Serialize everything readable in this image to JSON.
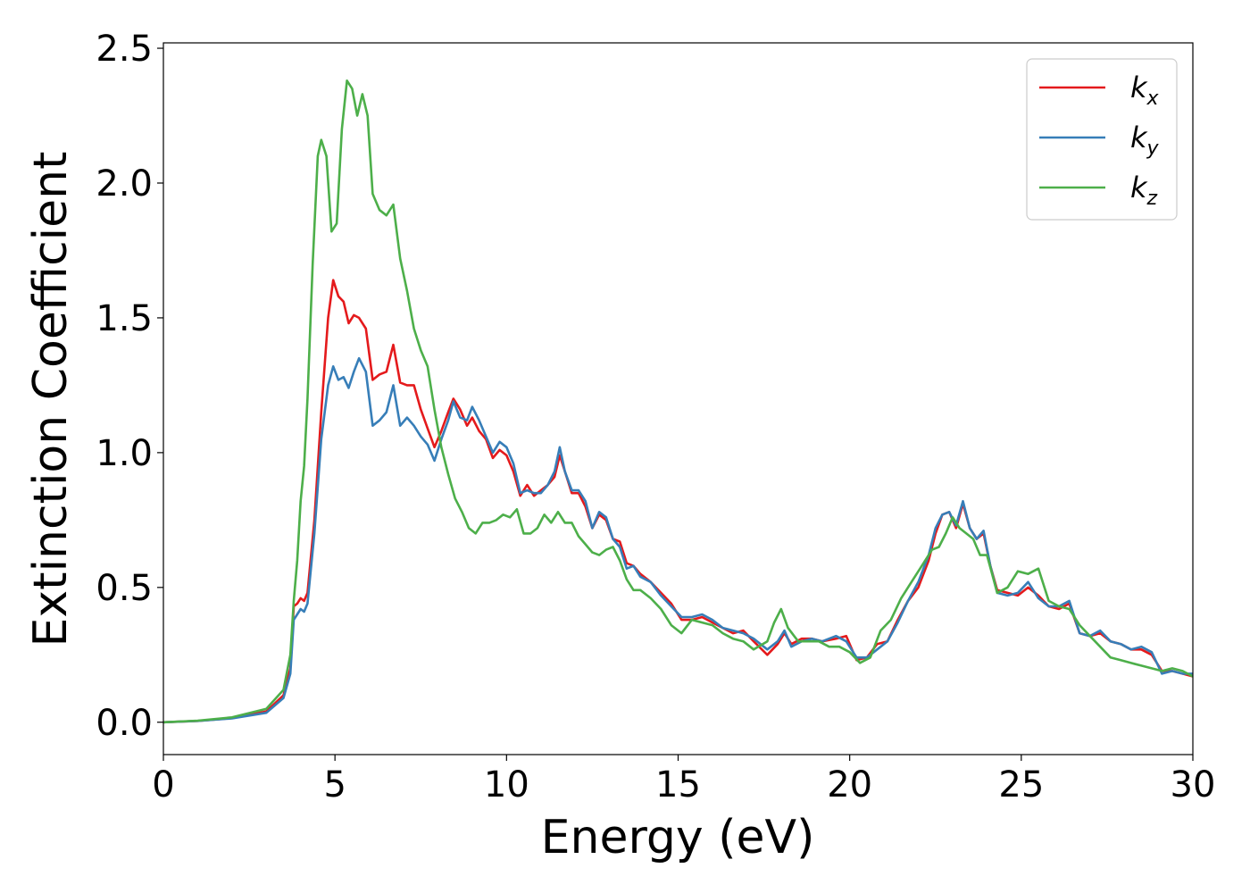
{
  "chart_data": {
    "type": "line",
    "xlabel": "Energy (eV)",
    "ylabel": "Extinction Coefficient",
    "xlim": [
      0,
      30
    ],
    "ylim": [
      -0.12,
      2.52
    ],
    "x_ticks": [
      "0",
      "5",
      "10",
      "15",
      "20",
      "25",
      "30"
    ],
    "y_ticks": [
      "0.0",
      "0.5",
      "1.0",
      "1.5",
      "2.0",
      "2.5"
    ],
    "legend_position": "top-right",
    "grid": false,
    "series": [
      {
        "name": "k_x",
        "label_base": "k",
        "label_sub": "x",
        "color": "#e41a1c",
        "x": [
          0,
          1,
          2,
          3,
          3.5,
          3.7,
          3.8,
          3.9,
          4.0,
          4.1,
          4.2,
          4.4,
          4.6,
          4.8,
          4.95,
          5.1,
          5.25,
          5.4,
          5.55,
          5.7,
          5.9,
          6.1,
          6.3,
          6.5,
          6.7,
          6.9,
          7.1,
          7.3,
          7.5,
          7.7,
          7.9,
          8.1,
          8.3,
          8.45,
          8.65,
          8.85,
          9.0,
          9.2,
          9.4,
          9.6,
          9.8,
          10.0,
          10.2,
          10.4,
          10.6,
          10.8,
          11.0,
          11.2,
          11.4,
          11.55,
          11.7,
          11.9,
          12.1,
          12.3,
          12.5,
          12.7,
          12.9,
          13.1,
          13.3,
          13.5,
          13.7,
          13.9,
          14.2,
          14.5,
          14.8,
          15.1,
          15.4,
          15.7,
          16.0,
          16.3,
          16.6,
          16.9,
          17.2,
          17.6,
          17.9,
          18.1,
          18.3,
          18.6,
          18.9,
          19.2,
          19.6,
          19.9,
          20.2,
          20.5,
          20.8,
          21.1,
          21.4,
          21.7,
          22.0,
          22.3,
          22.5,
          22.7,
          22.9,
          23.1,
          23.3,
          23.5,
          23.7,
          23.9,
          24.1,
          24.3,
          24.6,
          24.9,
          25.2,
          25.5,
          25.8,
          26.1,
          26.4,
          26.7,
          27.0,
          27.3,
          27.6,
          27.9,
          28.2,
          28.5,
          28.8,
          29.1,
          29.4,
          29.7,
          30.0
        ],
        "y": [
          0,
          0.005,
          0.015,
          0.04,
          0.1,
          0.2,
          0.43,
          0.44,
          0.46,
          0.45,
          0.48,
          0.75,
          1.15,
          1.5,
          1.64,
          1.58,
          1.56,
          1.48,
          1.51,
          1.5,
          1.46,
          1.27,
          1.29,
          1.3,
          1.4,
          1.26,
          1.25,
          1.25,
          1.16,
          1.09,
          1.02,
          1.08,
          1.15,
          1.2,
          1.16,
          1.1,
          1.13,
          1.08,
          1.05,
          0.98,
          1.01,
          0.99,
          0.93,
          0.84,
          0.88,
          0.84,
          0.86,
          0.88,
          0.91,
          0.99,
          0.93,
          0.85,
          0.85,
          0.8,
          0.72,
          0.77,
          0.75,
          0.68,
          0.67,
          0.59,
          0.58,
          0.55,
          0.52,
          0.48,
          0.44,
          0.38,
          0.38,
          0.39,
          0.37,
          0.35,
          0.33,
          0.34,
          0.3,
          0.25,
          0.29,
          0.33,
          0.29,
          0.31,
          0.31,
          0.3,
          0.31,
          0.32,
          0.23,
          0.24,
          0.29,
          0.3,
          0.38,
          0.45,
          0.5,
          0.6,
          0.7,
          0.77,
          0.78,
          0.72,
          0.81,
          0.72,
          0.68,
          0.7,
          0.58,
          0.49,
          0.48,
          0.47,
          0.5,
          0.47,
          0.43,
          0.42,
          0.44,
          0.33,
          0.32,
          0.33,
          0.3,
          0.29,
          0.27,
          0.27,
          0.25,
          0.19,
          0.19,
          0.18,
          0.17
        ]
      },
      {
        "name": "k_y",
        "label_base": "k",
        "label_sub": "y",
        "color": "#377eb8",
        "x": [
          0,
          1,
          2,
          3,
          3.5,
          3.7,
          3.8,
          3.9,
          4.0,
          4.1,
          4.2,
          4.4,
          4.6,
          4.8,
          4.95,
          5.1,
          5.25,
          5.4,
          5.55,
          5.7,
          5.9,
          6.1,
          6.3,
          6.5,
          6.7,
          6.9,
          7.1,
          7.3,
          7.5,
          7.7,
          7.9,
          8.1,
          8.3,
          8.45,
          8.65,
          8.85,
          9.0,
          9.2,
          9.4,
          9.6,
          9.8,
          10.0,
          10.2,
          10.4,
          10.6,
          10.8,
          11.0,
          11.2,
          11.4,
          11.55,
          11.7,
          11.9,
          12.1,
          12.3,
          12.5,
          12.7,
          12.9,
          13.1,
          13.3,
          13.5,
          13.7,
          13.9,
          14.2,
          14.5,
          14.8,
          15.1,
          15.4,
          15.7,
          16.0,
          16.3,
          16.6,
          16.9,
          17.2,
          17.6,
          17.9,
          18.1,
          18.3,
          18.6,
          18.9,
          19.2,
          19.6,
          19.9,
          20.2,
          20.5,
          20.8,
          21.1,
          21.4,
          21.7,
          22.0,
          22.3,
          22.5,
          22.7,
          22.9,
          23.1,
          23.3,
          23.5,
          23.7,
          23.9,
          24.1,
          24.3,
          24.6,
          24.9,
          25.2,
          25.5,
          25.8,
          26.1,
          26.4,
          26.7,
          27.0,
          27.3,
          27.6,
          27.9,
          28.2,
          28.5,
          28.8,
          29.1,
          29.4,
          29.7,
          30.0
        ],
        "y": [
          0,
          0.005,
          0.014,
          0.035,
          0.09,
          0.18,
          0.38,
          0.4,
          0.42,
          0.41,
          0.44,
          0.7,
          1.05,
          1.25,
          1.32,
          1.27,
          1.28,
          1.24,
          1.3,
          1.35,
          1.3,
          1.1,
          1.12,
          1.15,
          1.25,
          1.1,
          1.13,
          1.1,
          1.06,
          1.03,
          0.97,
          1.05,
          1.12,
          1.19,
          1.13,
          1.12,
          1.17,
          1.12,
          1.06,
          1.0,
          1.04,
          1.02,
          0.96,
          0.85,
          0.86,
          0.85,
          0.85,
          0.88,
          0.93,
          1.02,
          0.93,
          0.86,
          0.86,
          0.82,
          0.72,
          0.78,
          0.76,
          0.68,
          0.65,
          0.57,
          0.58,
          0.54,
          0.52,
          0.47,
          0.43,
          0.39,
          0.39,
          0.4,
          0.38,
          0.35,
          0.34,
          0.33,
          0.31,
          0.27,
          0.3,
          0.34,
          0.28,
          0.3,
          0.31,
          0.3,
          0.32,
          0.3,
          0.24,
          0.24,
          0.27,
          0.3,
          0.37,
          0.45,
          0.52,
          0.62,
          0.72,
          0.77,
          0.78,
          0.73,
          0.82,
          0.72,
          0.68,
          0.71,
          0.58,
          0.48,
          0.47,
          0.48,
          0.52,
          0.46,
          0.43,
          0.43,
          0.45,
          0.33,
          0.32,
          0.34,
          0.3,
          0.29,
          0.27,
          0.28,
          0.26,
          0.18,
          0.19,
          0.18,
          0.18
        ]
      },
      {
        "name": "k_z",
        "label_base": "k",
        "label_sub": "z",
        "color": "#4daf4a",
        "x": [
          0,
          1,
          2,
          3,
          3.5,
          3.7,
          3.8,
          3.9,
          4.0,
          4.1,
          4.2,
          4.35,
          4.5,
          4.6,
          4.75,
          4.9,
          5.05,
          5.2,
          5.35,
          5.5,
          5.65,
          5.8,
          5.95,
          6.1,
          6.3,
          6.5,
          6.7,
          6.9,
          7.1,
          7.3,
          7.5,
          7.7,
          7.9,
          8.1,
          8.3,
          8.5,
          8.7,
          8.9,
          9.1,
          9.3,
          9.5,
          9.7,
          9.9,
          10.1,
          10.3,
          10.5,
          10.7,
          10.9,
          11.1,
          11.3,
          11.5,
          11.7,
          11.9,
          12.1,
          12.3,
          12.5,
          12.7,
          12.9,
          13.1,
          13.3,
          13.5,
          13.7,
          13.9,
          14.2,
          14.5,
          14.8,
          15.1,
          15.4,
          15.7,
          16.0,
          16.3,
          16.6,
          16.9,
          17.2,
          17.6,
          17.8,
          18.0,
          18.2,
          18.5,
          18.8,
          19.1,
          19.4,
          19.7,
          20.0,
          20.3,
          20.6,
          20.9,
          21.2,
          21.5,
          21.8,
          22.1,
          22.4,
          22.6,
          22.8,
          23.0,
          23.2,
          23.4,
          23.6,
          23.8,
          24.0,
          24.3,
          24.6,
          24.9,
          25.2,
          25.5,
          25.8,
          26.1,
          26.4,
          26.7,
          27.0,
          27.3,
          27.6,
          27.9,
          28.2,
          28.5,
          28.8,
          29.1,
          29.4,
          29.7,
          30.0
        ],
        "y": [
          0,
          0.006,
          0.018,
          0.05,
          0.12,
          0.25,
          0.45,
          0.6,
          0.82,
          0.95,
          1.2,
          1.7,
          2.1,
          2.16,
          2.1,
          1.82,
          1.85,
          2.2,
          2.38,
          2.35,
          2.25,
          2.33,
          2.25,
          1.96,
          1.9,
          1.88,
          1.92,
          1.72,
          1.6,
          1.46,
          1.38,
          1.32,
          1.16,
          1.02,
          0.92,
          0.83,
          0.78,
          0.72,
          0.7,
          0.74,
          0.74,
          0.75,
          0.77,
          0.76,
          0.79,
          0.7,
          0.7,
          0.72,
          0.77,
          0.74,
          0.78,
          0.74,
          0.74,
          0.69,
          0.66,
          0.63,
          0.62,
          0.64,
          0.65,
          0.6,
          0.53,
          0.49,
          0.49,
          0.46,
          0.42,
          0.36,
          0.33,
          0.38,
          0.37,
          0.36,
          0.33,
          0.31,
          0.3,
          0.27,
          0.3,
          0.37,
          0.42,
          0.35,
          0.3,
          0.3,
          0.3,
          0.28,
          0.28,
          0.26,
          0.22,
          0.24,
          0.34,
          0.38,
          0.46,
          0.52,
          0.58,
          0.64,
          0.65,
          0.7,
          0.76,
          0.72,
          0.7,
          0.68,
          0.62,
          0.62,
          0.48,
          0.5,
          0.56,
          0.55,
          0.57,
          0.45,
          0.43,
          0.42,
          0.36,
          0.32,
          0.28,
          0.24,
          0.23,
          0.22,
          0.21,
          0.2,
          0.19,
          0.2,
          0.19,
          0.17
        ]
      }
    ]
  }
}
